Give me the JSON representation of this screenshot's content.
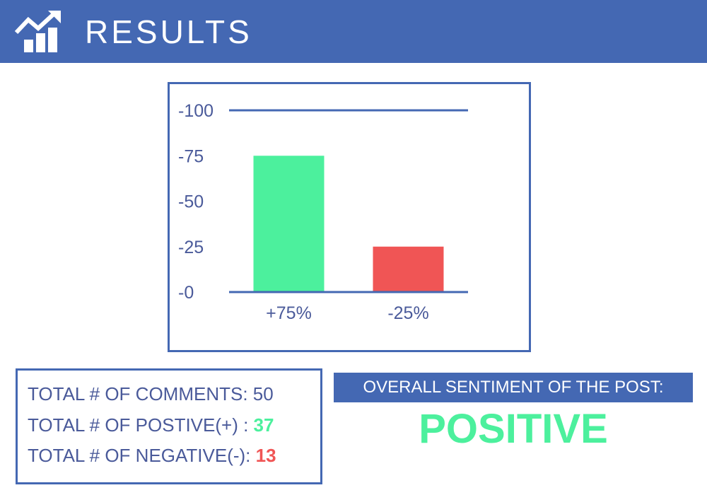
{
  "header": {
    "title": "RESULTS",
    "icon": "chart-growth-icon"
  },
  "colors": {
    "accent": "#4468b3",
    "positive": "#4cf09d",
    "negative": "#f05555",
    "text": "#4a5a9a"
  },
  "chart_data": {
    "type": "bar",
    "categories": [
      "+75%",
      "-25%"
    ],
    "values": [
      75,
      25
    ],
    "colors": [
      "#4cf09d",
      "#f05555"
    ],
    "yticks": [
      "-100",
      "-75",
      "-50",
      "-25",
      "-0"
    ],
    "ylim": [
      0,
      100
    ],
    "grid": false
  },
  "stats": {
    "comments_label": "TOTAL # OF COMMENTS: ",
    "comments_value": "50",
    "positive_label": "TOTAL # OF POSTIVE(+) : ",
    "positive_value": "37",
    "negative_label": "TOTAL # OF NEGATIVE(-): ",
    "negative_value": "13"
  },
  "sentiment": {
    "label": "OVERALL SENTIMENT OF THE POST:",
    "value": "POSITIVE"
  }
}
